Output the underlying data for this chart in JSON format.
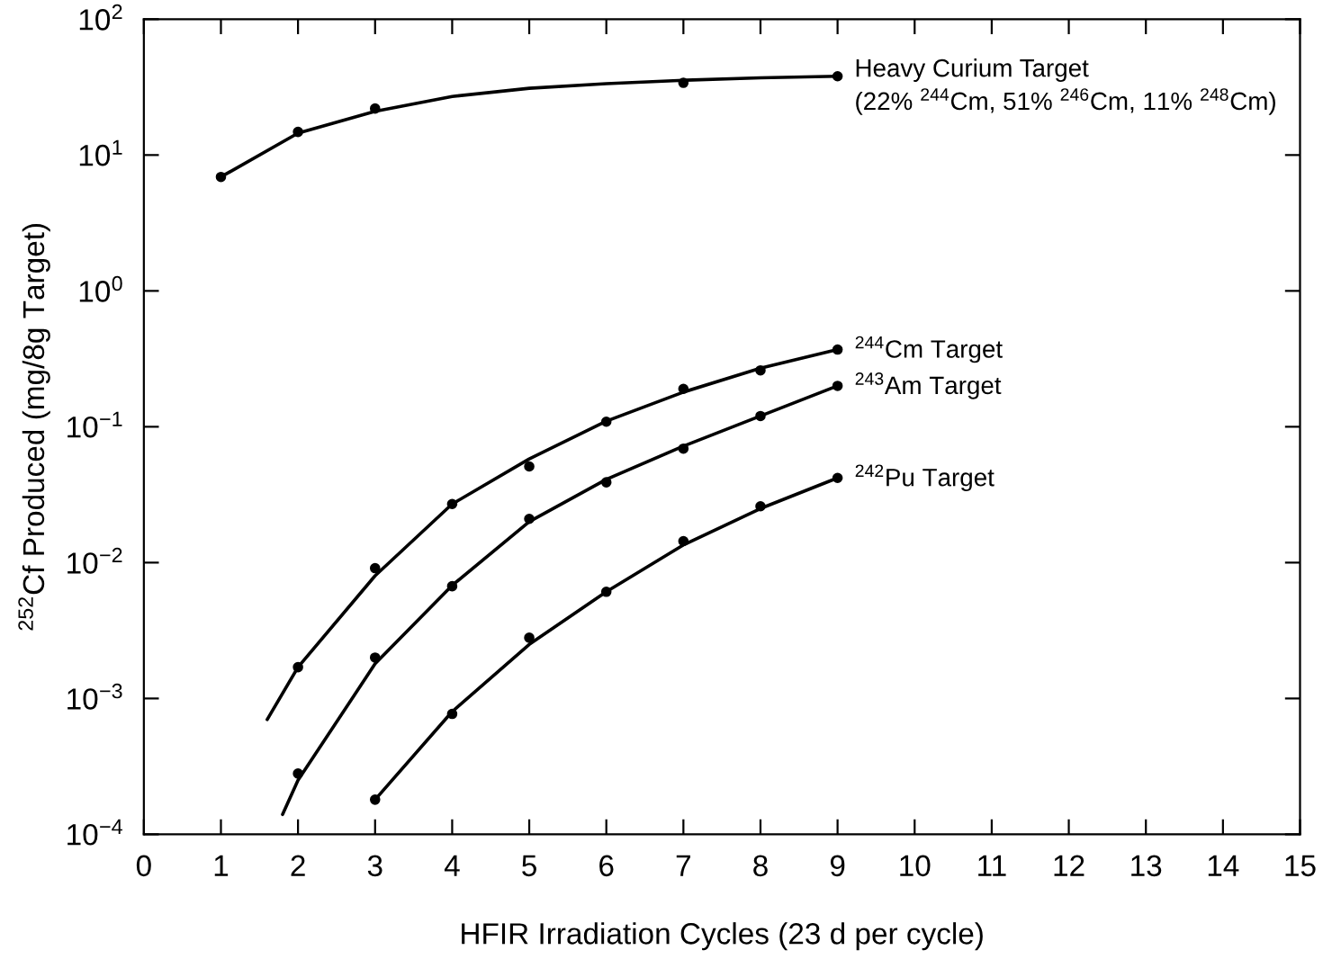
{
  "chart_data": {
    "type": "line",
    "xlabel": "HFIR Irradiation Cycles (23 d per cycle)",
    "ylabel": "$^{252}$Cf Produced (mg/8g Target)",
    "log": "y",
    "grid": false,
    "xlim": [
      0,
      15
    ],
    "xticks": [
      0,
      1,
      2,
      3,
      4,
      5,
      6,
      7,
      8,
      9,
      10,
      11,
      12,
      13,
      14,
      15
    ],
    "ylim": [
      0.0001,
      100
    ],
    "yticks": [
      {
        "value": 0.0001,
        "label": "10$^{−4}$"
      },
      {
        "value": 0.001,
        "label": "10$^{−3}$"
      },
      {
        "value": 0.01,
        "label": "10$^{−2}$"
      },
      {
        "value": 0.1,
        "label": "10$^{−1}$"
      },
      {
        "value": 1,
        "label": "10$^{0}$"
      },
      {
        "value": 10,
        "label": "10$^{1}$"
      },
      {
        "value": 100,
        "label": "10$^{2}$"
      }
    ],
    "series": [
      {
        "name": "Heavy Curium Target\n(22% $^{244}$Cm, 51% $^{246}$Cm, 11% $^{248}$Cm)",
        "color": "#000000",
        "marker": "none",
        "line_style": "solid",
        "x": [
          1,
          2,
          3,
          4,
          5,
          6,
          7,
          8,
          9
        ],
        "values": [
          6.9,
          14.5,
          21,
          27,
          31,
          33.5,
          35.5,
          37,
          38
        ]
      },
      {
        "name": "$^{244}$Cm Target",
        "color": "#000000",
        "marker": "none",
        "line_style": "solid",
        "x": [
          1.6,
          2,
          3,
          4,
          5,
          6,
          7,
          8,
          9
        ],
        "values": [
          0.0007,
          0.0017,
          0.008,
          0.027,
          0.058,
          0.11,
          0.18,
          0.27,
          0.37
        ]
      },
      {
        "name": "$^{243}$Am Target",
        "color": "#000000",
        "marker": "none",
        "line_style": "solid",
        "x": [
          1.8,
          2,
          3,
          4,
          5,
          6,
          7,
          8,
          9
        ],
        "values": [
          0.00014,
          0.00025,
          0.0018,
          0.0068,
          0.02,
          0.041,
          0.072,
          0.12,
          0.2
        ]
      },
      {
        "name": "$^{242}$Pu Target",
        "color": "#000000",
        "marker": "none",
        "line_style": "solid",
        "x": [
          3,
          4,
          5,
          6,
          7,
          8,
          9
        ],
        "values": [
          0.00018,
          0.0008,
          0.0025,
          0.0061,
          0.0135,
          0.025,
          0.042
        ]
      },
      {
        "type": "scatter",
        "color": "#000000",
        "marker": "circle",
        "x": [
          1,
          2,
          3,
          7,
          9
        ],
        "values": [
          6.9,
          14.8,
          22,
          34,
          38
        ]
      },
      {
        "type": "scatter",
        "color": "#000000",
        "marker": "circle",
        "x": [
          2,
          3,
          4,
          5,
          6,
          7,
          8,
          9
        ],
        "values": [
          0.0017,
          0.0091,
          0.027,
          0.051,
          0.109,
          0.19,
          0.26,
          0.37
        ]
      },
      {
        "type": "scatter",
        "color": "#000000",
        "marker": "circle",
        "x": [
          2,
          3,
          4,
          5,
          6,
          7,
          8,
          9
        ],
        "values": [
          0.00028,
          0.002,
          0.0067,
          0.021,
          0.039,
          0.069,
          0.12,
          0.2
        ]
      },
      {
        "type": "scatter",
        "color": "#000000",
        "marker": "circle",
        "x": [
          3,
          4,
          5,
          6,
          7,
          8,
          9
        ],
        "values": [
          0.00018,
          0.00077,
          0.0028,
          0.0061,
          0.0144,
          0.026,
          0.042
        ]
      }
    ]
  }
}
